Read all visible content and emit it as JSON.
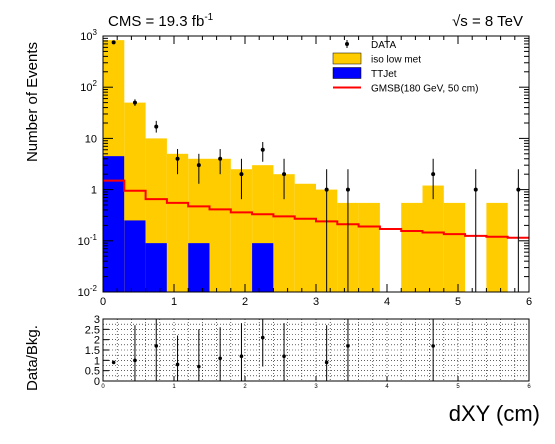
{
  "chart_data": [
    {
      "type": "bar",
      "subtype": "stacked-histogram",
      "title_left": "CMS = 19.3 fb",
      "title_left_sup": "-1",
      "title_right": "√s = 8 TeV",
      "ylabel": "Number of Events",
      "xlabel": "dXY (cm)",
      "y_scale": "log",
      "ylim": [
        0.01,
        1000
      ],
      "xlim": [
        0,
        6
      ],
      "x_ticks": [
        "0",
        "1",
        "2",
        "3",
        "4",
        "5",
        "6"
      ],
      "y_ticks": [
        {
          "base": "10",
          "exp": "-2"
        },
        {
          "base": "10",
          "exp": "-1"
        },
        {
          "base": "1",
          "exp": ""
        },
        {
          "base": "10",
          "exp": ""
        },
        {
          "base": "10",
          "exp": "2"
        },
        {
          "base": "10",
          "exp": "3"
        }
      ],
      "bin_edges": [
        0,
        0.3,
        0.6,
        0.9,
        1.2,
        1.5,
        1.8,
        2.1,
        2.4,
        2.7,
        3.0,
        3.3,
        3.6,
        3.9,
        4.2,
        4.5,
        4.8,
        5.1,
        5.4,
        5.7,
        6.0
      ],
      "legend": {
        "position": "top-right",
        "entries": [
          {
            "label": "DATA",
            "marker": "point"
          },
          {
            "label": "iso low met",
            "color": "#FFCC00",
            "marker": "box"
          },
          {
            "label": "TTJet",
            "color": "#0000FF",
            "marker": "box"
          },
          {
            "label": "GMSB(180 GeV, 50 cm)",
            "color": "#FF0000",
            "marker": "line"
          }
        ]
      },
      "series": [
        {
          "name": "iso low met",
          "color": "#FFCC00",
          "values": [
            830,
            50,
            10,
            5,
            4,
            4,
            2.5,
            3,
            2,
            1.3,
            1,
            0.55,
            0.55,
            0.01,
            0.55,
            1.2,
            0.55,
            0.01,
            0.55,
            0.01
          ]
        },
        {
          "name": "TTJet",
          "color": "#0000FF",
          "values": [
            4.5,
            0.25,
            0.09,
            0.01,
            0.09,
            0.01,
            0.01,
            0.09,
            0.01,
            0.01,
            0.01,
            0.01,
            0.01,
            0.01,
            0.01,
            0.01,
            0.01,
            0.01,
            0.01,
            0.01
          ]
        },
        {
          "name": "GMSB(180 GeV, 50 cm)",
          "color": "#FF0000",
          "values": [
            1.5,
            0.95,
            0.65,
            0.55,
            0.47,
            0.41,
            0.36,
            0.33,
            0.3,
            0.27,
            0.24,
            0.21,
            0.19,
            0.17,
            0.155,
            0.145,
            0.135,
            0.125,
            0.12,
            0.115
          ]
        }
      ],
      "data_points": [
        {
          "x": 0.15,
          "y": 750,
          "ylo": 700,
          "yhi": 800
        },
        {
          "x": 0.45,
          "y": 50,
          "ylo": 43,
          "yhi": 58
        },
        {
          "x": 0.75,
          "y": 17,
          "ylo": 13,
          "yhi": 22
        },
        {
          "x": 1.05,
          "y": 4,
          "ylo": 2.0,
          "yhi": 6.2
        },
        {
          "x": 1.35,
          "y": 3,
          "ylo": 1.3,
          "yhi": 5.0
        },
        {
          "x": 1.65,
          "y": 4,
          "ylo": 2.0,
          "yhi": 6.2
        },
        {
          "x": 1.95,
          "y": 2,
          "ylo": 0.65,
          "yhi": 4.0
        },
        {
          "x": 2.25,
          "y": 6,
          "ylo": 3.5,
          "yhi": 8.5
        },
        {
          "x": 2.55,
          "y": 2,
          "ylo": 0.65,
          "yhi": 4.0
        },
        {
          "x": 3.15,
          "y": 1,
          "ylo": 0.01,
          "yhi": 2.5
        },
        {
          "x": 3.45,
          "y": 1,
          "ylo": 0.01,
          "yhi": 2.5
        },
        {
          "x": 4.65,
          "y": 2,
          "ylo": 0.65,
          "yhi": 4.0
        },
        {
          "x": 5.25,
          "y": 1,
          "ylo": 0.01,
          "yhi": 2.5
        },
        {
          "x": 5.85,
          "y": 1,
          "ylo": 0.01,
          "yhi": 2.5
        }
      ]
    },
    {
      "type": "scatter",
      "subtype": "ratio",
      "ylabel": "Data/Bkg.",
      "ylim": [
        0,
        3
      ],
      "xlim": [
        0,
        6
      ],
      "grid": true,
      "x_ticks": [
        "0",
        "1",
        "2",
        "3",
        "4",
        "5",
        "6"
      ],
      "y_ticks": [
        "0",
        "0.5",
        "1",
        "1.5",
        "2",
        "2.5",
        "3"
      ],
      "points": [
        {
          "x": 0.15,
          "y": 0.9,
          "ylo": 0.85,
          "yhi": 0.96
        },
        {
          "x": 0.45,
          "y": 1.0,
          "ylo": 0.0,
          "yhi": 2.7
        },
        {
          "x": 0.75,
          "y": 1.7,
          "ylo": 0.0,
          "yhi": 3.0
        },
        {
          "x": 1.05,
          "y": 0.8,
          "ylo": 0.0,
          "yhi": 2.2
        },
        {
          "x": 1.35,
          "y": 0.7,
          "ylo": 0.0,
          "yhi": 2.5
        },
        {
          "x": 1.65,
          "y": 1.1,
          "ylo": 0.0,
          "yhi": 2.6
        },
        {
          "x": 1.95,
          "y": 1.2,
          "ylo": 0.0,
          "yhi": 2.8
        },
        {
          "x": 2.25,
          "y": 2.1,
          "ylo": 0.7,
          "yhi": 3.0
        },
        {
          "x": 2.55,
          "y": 1.2,
          "ylo": 0.0,
          "yhi": 2.8
        },
        {
          "x": 3.15,
          "y": 0.9,
          "ylo": 0.0,
          "yhi": 2.7
        },
        {
          "x": 3.45,
          "y": 1.7,
          "ylo": 0.0,
          "yhi": 3.0
        },
        {
          "x": 4.65,
          "y": 1.7,
          "ylo": 0.0,
          "yhi": 3.0
        }
      ]
    }
  ]
}
